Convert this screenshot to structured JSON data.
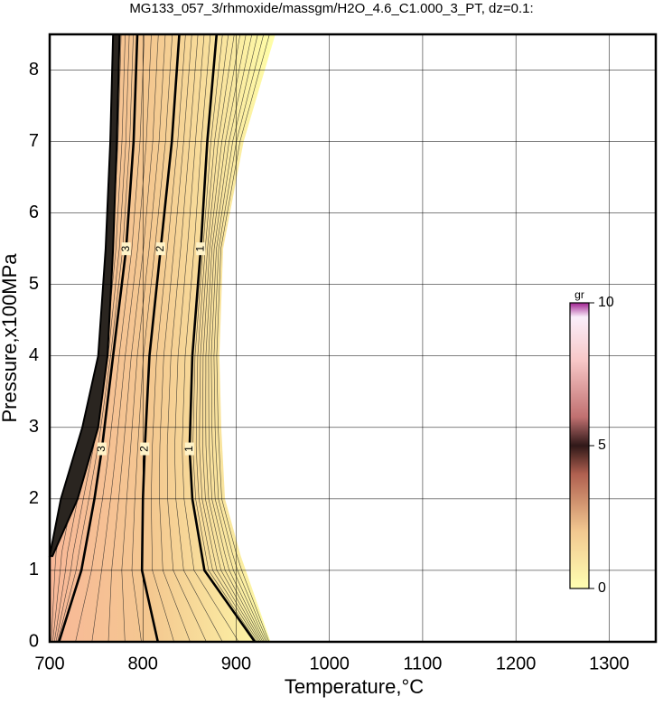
{
  "chart_data": {
    "type": "contour",
    "title": "MG133_057_3/rhmoxide/massgm/H2O_4.6_C1.000_3_PT, dz=0.1:",
    "xlabel": "Temperature,°C",
    "ylabel": "Pressure,x100MPa",
    "xlim": [
      700,
      1350
    ],
    "ylim": [
      0,
      8.5
    ],
    "xticks": [
      700,
      800,
      900,
      1000,
      1100,
      1200,
      1300
    ],
    "yticks": [
      0,
      1,
      2,
      3,
      4,
      5,
      6,
      7,
      8
    ],
    "grid": true,
    "region": {
      "pressures": [
        0,
        1.2,
        2,
        3,
        4,
        5.5,
        7,
        8.5
      ],
      "left": [
        700,
        700,
        712,
        735,
        752,
        760,
        765,
        768
      ],
      "right": [
        937,
        905,
        888,
        884,
        882,
        886,
        908,
        942
      ]
    },
    "dark_band": {
      "pressures": [
        1.2,
        2,
        3,
        4,
        5.5,
        7,
        8.5
      ],
      "left": [
        700,
        712,
        735,
        752,
        760,
        765,
        768
      ],
      "right": [
        703,
        730,
        752,
        762,
        768,
        772,
        775
      ]
    },
    "contours": {
      "pressures": [
        0,
        1,
        2,
        2.7,
        4,
        5.5,
        7,
        8.5
      ],
      "series": [
        {
          "name": "1",
          "values": [
            920,
            866,
            853,
            850,
            853,
            862,
            869,
            879
          ]
        },
        {
          "name": "2",
          "values": [
            816,
            799,
            800,
            802,
            807,
            819,
            831,
            839
          ]
        },
        {
          "name": "3",
          "values": [
            710,
            734,
            748,
            756,
            768,
            782,
            790,
            794
          ]
        }
      ]
    },
    "colorbar": {
      "label": "gr",
      "lim": [
        0,
        10
      ],
      "ticks": [
        0,
        5,
        10
      ],
      "colormap": [
        [
          0,
          "#ffffb2"
        ],
        [
          2,
          "#f2c890"
        ],
        [
          4,
          "#b06050"
        ],
        [
          5,
          "#301818"
        ],
        [
          6,
          "#c07070"
        ],
        [
          8,
          "#f8c8c8"
        ],
        [
          9.5,
          "#faeefa"
        ],
        [
          10,
          "#a02090"
        ]
      ]
    }
  }
}
